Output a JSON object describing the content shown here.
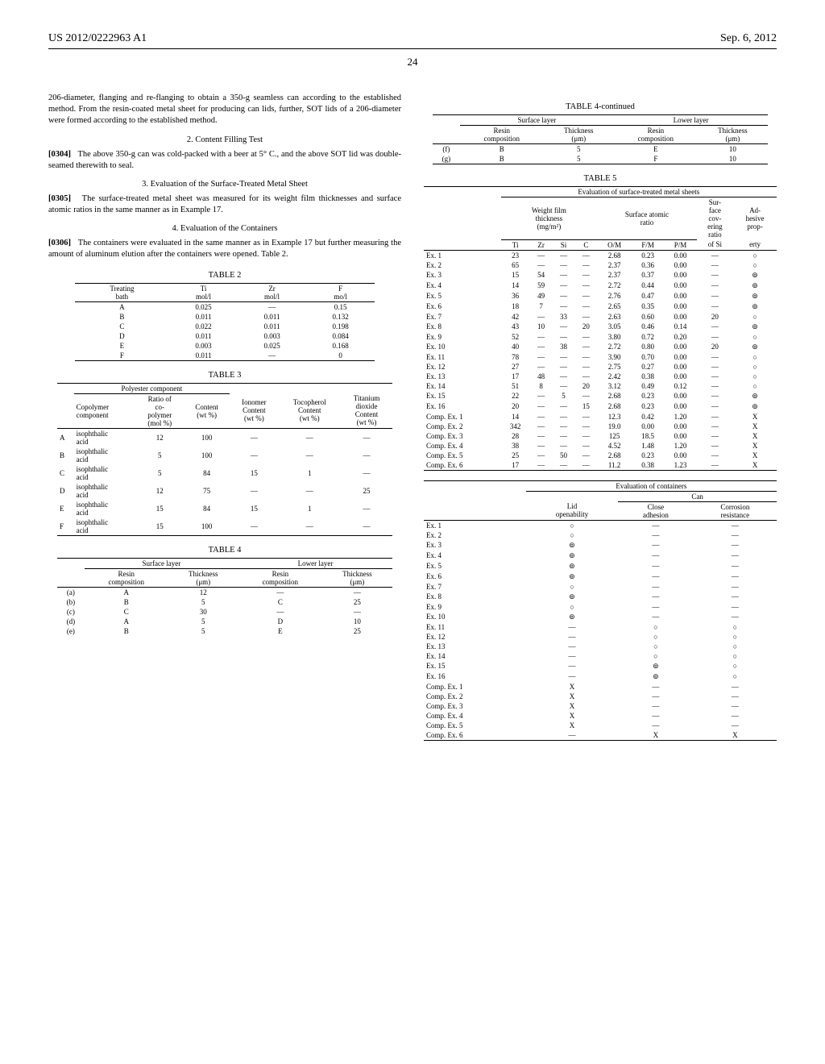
{
  "header": {
    "left": "US 2012/0222963 A1",
    "right": "Sep. 6, 2012"
  },
  "page_number": "24",
  "left_col": {
    "intro": "206-diameter, flanging and re-flanging to obtain a 350-g seamless can according to the established method. From the resin-coated metal sheet for producing can lids, further, SOT lids of a 206-diameter were formed according to the established method.",
    "sec2_title": "2. Content Filling Test",
    "p0304_num": "[0304]",
    "p0304": "The above 350-g can was cold-packed with a beer at 5° C., and the above SOT lid was double-seamed therewith to seal.",
    "sec3_title": "3. Evaluation of the Surface-Treated Metal Sheet",
    "p0305_num": "[0305]",
    "p0305": "The surface-treated metal sheet was measured for its weight film thicknesses and surface atomic ratios in the same manner as in Example 17.",
    "sec4_title": "4. Evaluation of the Containers",
    "p0306_num": "[0306]",
    "p0306": "The containers were evaluated in the same manner as in Example 17 but further measuring the amount of aluminum elution after the containers were opened. Table 2."
  },
  "table2": {
    "caption": "TABLE 2",
    "headers": {
      "c0": "Treating\nbath",
      "c1": "Ti\nmol/l",
      "c2": "Zr\nmol/l",
      "c3": "F\nmo/l"
    },
    "rows": [
      [
        "A",
        "0.025",
        "—",
        "0.15"
      ],
      [
        "B",
        "0.011",
        "0.011",
        "0.132"
      ],
      [
        "C",
        "0.022",
        "0.011",
        "0.198"
      ],
      [
        "D",
        "0.011",
        "0.003",
        "0.084"
      ],
      [
        "E",
        "0.003",
        "0.025",
        "0.168"
      ],
      [
        "F",
        "0.011",
        "—",
        "0"
      ]
    ]
  },
  "table3": {
    "caption": "TABLE 3",
    "span_label": "Polyester component",
    "headers": {
      "c0": "",
      "c1": "Copolymer\ncomponent",
      "c2": "Ratio of\nco-\npolymer\n(mol %)",
      "c3": "Content\n(wt %)",
      "c4": "Ionomer\nContent\n(wt %)",
      "c5": "Tocopherol\nContent\n(wt %)",
      "c6": "Titanium\ndioxide\nContent\n(wt %)"
    },
    "rows": [
      [
        "A",
        "isophthalic\nacid",
        "12",
        "100",
        "—",
        "—",
        "—"
      ],
      [
        "B",
        "isophthalic\nacid",
        "5",
        "100",
        "—",
        "—",
        "—"
      ],
      [
        "C",
        "isophthalic\nacid",
        "5",
        "84",
        "15",
        "1",
        "—"
      ],
      [
        "D",
        "isophthalic\nacid",
        "12",
        "75",
        "—",
        "—",
        "25"
      ],
      [
        "E",
        "isophthalic\nacid",
        "15",
        "84",
        "15",
        "1",
        "—"
      ],
      [
        "F",
        "isophthalic\nacid",
        "15",
        "100",
        "—",
        "—",
        "—"
      ]
    ]
  },
  "table4": {
    "caption": "TABLE 4",
    "top_headers": {
      "surface": "Surface layer",
      "lower": "Lower layer"
    },
    "sub_headers": {
      "c0": "",
      "c1": "Resin\ncomposition",
      "c2": "Thickness\n(μm)",
      "c3": "Resin\ncomposition",
      "c4": "Thickness\n(μm)"
    },
    "rows": [
      [
        "(a)",
        "A",
        "12",
        "—",
        "—"
      ],
      [
        "(b)",
        "B",
        "5",
        "C",
        "25"
      ],
      [
        "(c)",
        "C",
        "30",
        "—",
        "—"
      ],
      [
        "(d)",
        "A",
        "5",
        "D",
        "10"
      ],
      [
        "(e)",
        "B",
        "5",
        "E",
        "25"
      ]
    ]
  },
  "table4c": {
    "caption": "TABLE 4-continued",
    "rows": [
      [
        "(f)",
        "B",
        "5",
        "E",
        "10"
      ],
      [
        "(g)",
        "B",
        "5",
        "F",
        "10"
      ]
    ]
  },
  "table5": {
    "caption": "TABLE 5",
    "top_span": "Evaluation of surface-treated metal sheets",
    "group_headers": {
      "wft": "Weight film\nthickness\n(mg/m²)",
      "sar": "Surface atomic\nratio",
      "scr": "Sur-\nface\ncov-\nering\nratio",
      "adh": "Ad-\nhesive\nprop-"
    },
    "sub_headers": [
      "",
      "Ti",
      "Zr",
      "Si",
      "C",
      "O/M",
      "F/M",
      "P/M",
      "of Si",
      "erty"
    ],
    "rows": [
      [
        "Ex. 1",
        "23",
        "—",
        "—",
        "—",
        "2.68",
        "0.23",
        "0.00",
        "—",
        "○"
      ],
      [
        "Ex. 2",
        "65",
        "—",
        "—",
        "—",
        "2.37",
        "0.36",
        "0.00",
        "—",
        "○"
      ],
      [
        "Ex. 3",
        "15",
        "54",
        "—",
        "—",
        "2.37",
        "0.37",
        "0.00",
        "—",
        "⊚"
      ],
      [
        "Ex. 4",
        "14",
        "59",
        "—",
        "—",
        "2.72",
        "0.44",
        "0.00",
        "—",
        "⊚"
      ],
      [
        "Ex. 5",
        "36",
        "49",
        "—",
        "—",
        "2.76",
        "0.47",
        "0.00",
        "—",
        "⊚"
      ],
      [
        "Ex. 6",
        "18",
        "7",
        "—",
        "—",
        "2.65",
        "0.35",
        "0.00",
        "—",
        "⊚"
      ],
      [
        "Ex. 7",
        "42",
        "—",
        "33",
        "—",
        "2.63",
        "0.60",
        "0.00",
        "20",
        "○"
      ],
      [
        "Ex. 8",
        "43",
        "10",
        "—",
        "20",
        "3.05",
        "0.46",
        "0.14",
        "—",
        "⊚"
      ],
      [
        "Ex. 9",
        "52",
        "—",
        "—",
        "—",
        "3.80",
        "0.72",
        "0.20",
        "—",
        "○"
      ],
      [
        "Ex. 10",
        "40",
        "—",
        "38",
        "—",
        "2.72",
        "0.80",
        "0.00",
        "20",
        "⊚"
      ],
      [
        "Ex. 11",
        "78",
        "—",
        "—",
        "—",
        "3.90",
        "0.70",
        "0.00",
        "—",
        "○"
      ],
      [
        "Ex. 12",
        "27",
        "—",
        "—",
        "—",
        "2.75",
        "0.27",
        "0.00",
        "—",
        "○"
      ],
      [
        "Ex. 13",
        "17",
        "48",
        "—",
        "—",
        "2.42",
        "0.38",
        "0.00",
        "—",
        "○"
      ],
      [
        "Ex. 14",
        "51",
        "8",
        "—",
        "20",
        "3.12",
        "0.49",
        "0.12",
        "—",
        "○"
      ],
      [
        "Ex. 15",
        "22",
        "—",
        "5",
        "—",
        "2.68",
        "0.23",
        "0.00",
        "—",
        "⊚"
      ],
      [
        "Ex. 16",
        "20",
        "—",
        "—",
        "15",
        "2.68",
        "0.23",
        "0.00",
        "—",
        "⊚"
      ],
      [
        "Comp. Ex. 1",
        "14",
        "—",
        "—",
        "—",
        "12.3",
        "0.42",
        "1.20",
        "—",
        "X"
      ],
      [
        "Comp. Ex. 2",
        "342",
        "—",
        "—",
        "—",
        "19.0",
        "0.00",
        "0.00",
        "—",
        "X"
      ],
      [
        "Comp. Ex. 3",
        "28",
        "—",
        "—",
        "—",
        "125",
        "18.5",
        "0.00",
        "—",
        "X"
      ],
      [
        "Comp. Ex. 4",
        "38",
        "—",
        "—",
        "—",
        "4.52",
        "1.48",
        "1.20",
        "—",
        "X"
      ],
      [
        "Comp. Ex. 5",
        "25",
        "—",
        "50",
        "—",
        "2.68",
        "0.23",
        "0.00",
        "—",
        "X"
      ],
      [
        "Comp. Ex. 6",
        "17",
        "—",
        "—",
        "—",
        "11.2",
        "0.38",
        "1.23",
        "—",
        "X"
      ]
    ]
  },
  "table5b": {
    "top_span": "Evaluation of containers",
    "can_span": "Can",
    "headers": [
      "",
      "Lid\nopenability",
      "Close\nadhesion",
      "Corrosion\nresistance"
    ],
    "rows": [
      [
        "Ex. 1",
        "○",
        "—",
        "—"
      ],
      [
        "Ex. 2",
        "○",
        "—",
        "—"
      ],
      [
        "Ex. 3",
        "⊚",
        "—",
        "—"
      ],
      [
        "Ex. 4",
        "⊚",
        "—",
        "—"
      ],
      [
        "Ex. 5",
        "⊚",
        "—",
        "—"
      ],
      [
        "Ex. 6",
        "⊚",
        "—",
        "—"
      ],
      [
        "Ex. 7",
        "○",
        "—",
        "—"
      ],
      [
        "Ex. 8",
        "⊚",
        "—",
        "—"
      ],
      [
        "Ex. 9",
        "○",
        "—",
        "—"
      ],
      [
        "Ex. 10",
        "⊚",
        "—",
        "—"
      ],
      [
        "Ex. 11",
        "—",
        "○",
        "○"
      ],
      [
        "Ex. 12",
        "—",
        "○",
        "○"
      ],
      [
        "Ex. 13",
        "—",
        "○",
        "○"
      ],
      [
        "Ex. 14",
        "—",
        "○",
        "○"
      ],
      [
        "Ex. 15",
        "—",
        "⊚",
        "○"
      ],
      [
        "Ex. 16",
        "—",
        "⊚",
        "○"
      ],
      [
        "Comp. Ex. 1",
        "X",
        "—",
        "—"
      ],
      [
        "Comp. Ex. 2",
        "X",
        "—",
        "—"
      ],
      [
        "Comp. Ex. 3",
        "X",
        "—",
        "—"
      ],
      [
        "Comp. Ex. 4",
        "X",
        "—",
        "—"
      ],
      [
        "Comp. Ex. 5",
        "X",
        "—",
        "—"
      ],
      [
        "Comp. Ex. 6",
        "—",
        "X",
        "X"
      ]
    ]
  }
}
